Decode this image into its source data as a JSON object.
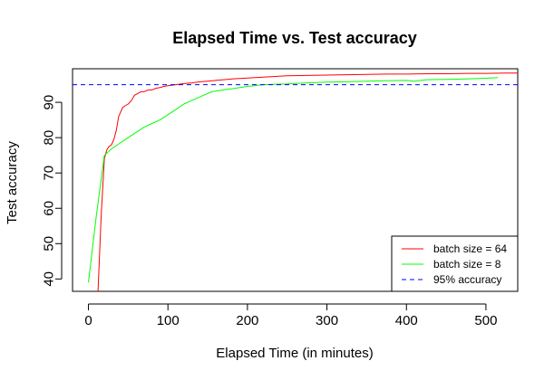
{
  "chart_data": {
    "type": "line",
    "title": "Elapsed Time vs. Test accuracy",
    "xlabel": "Elapsed Time (in minutes)",
    "ylabel": "Test accuracy",
    "xlim": [
      -20,
      540
    ],
    "ylim": [
      36.5,
      99.5
    ],
    "xticks": [
      0,
      100,
      200,
      300,
      400,
      500
    ],
    "yticks": [
      40,
      50,
      60,
      70,
      80,
      90
    ],
    "grid": false,
    "legend_position": "bottom-right",
    "series": [
      {
        "name": "batch size = 64",
        "color": "#ff0000",
        "x": [
          12,
          16,
          20,
          23,
          26,
          29,
          32,
          35,
          38,
          40,
          43,
          46,
          50,
          54,
          58,
          62,
          66,
          70,
          75,
          80,
          85,
          90,
          95,
          100,
          110,
          120,
          130,
          140,
          150,
          160,
          180,
          200,
          225,
          250,
          275,
          300,
          325,
          350,
          375,
          400,
          425,
          450,
          475,
          500,
          525,
          540
        ],
        "y": [
          36.5,
          58,
          74,
          76.5,
          77.5,
          78,
          79.5,
          82,
          86,
          87,
          88.5,
          89,
          89.5,
          90.5,
          92,
          92.5,
          93,
          93,
          93.5,
          93.5,
          94,
          94.2,
          94.5,
          94.7,
          95,
          95.3,
          95.5,
          95.8,
          96,
          96.2,
          96.6,
          96.9,
          97.2,
          97.5,
          97.6,
          97.7,
          97.8,
          97.9,
          98,
          98,
          98.1,
          98.1,
          98.2,
          98.2,
          98.3,
          98.3
        ]
      },
      {
        "name": "batch size = 8",
        "color": "#00ff00",
        "x": [
          0,
          10,
          20,
          25,
          30,
          40,
          50,
          60,
          70,
          80,
          90,
          100,
          110,
          120,
          130,
          140,
          155,
          170,
          185,
          200,
          220,
          250,
          275,
          300,
          325,
          350,
          375,
          400,
          410,
          425,
          450,
          475,
          500,
          515
        ],
        "y": [
          39,
          58,
          75,
          76,
          77,
          78.5,
          80,
          81.5,
          83,
          84,
          85,
          86.5,
          88,
          89.5,
          90.5,
          91.5,
          93,
          93.5,
          94,
          94.5,
          95,
          95.2,
          95.5,
          95.7,
          95.8,
          96,
          96.1,
          96.2,
          96,
          96.4,
          96.5,
          96.6,
          96.8,
          97
        ]
      },
      {
        "name": "95% accuracy",
        "color": "#0000ff",
        "dashed": true,
        "y_const": 95
      }
    ]
  }
}
